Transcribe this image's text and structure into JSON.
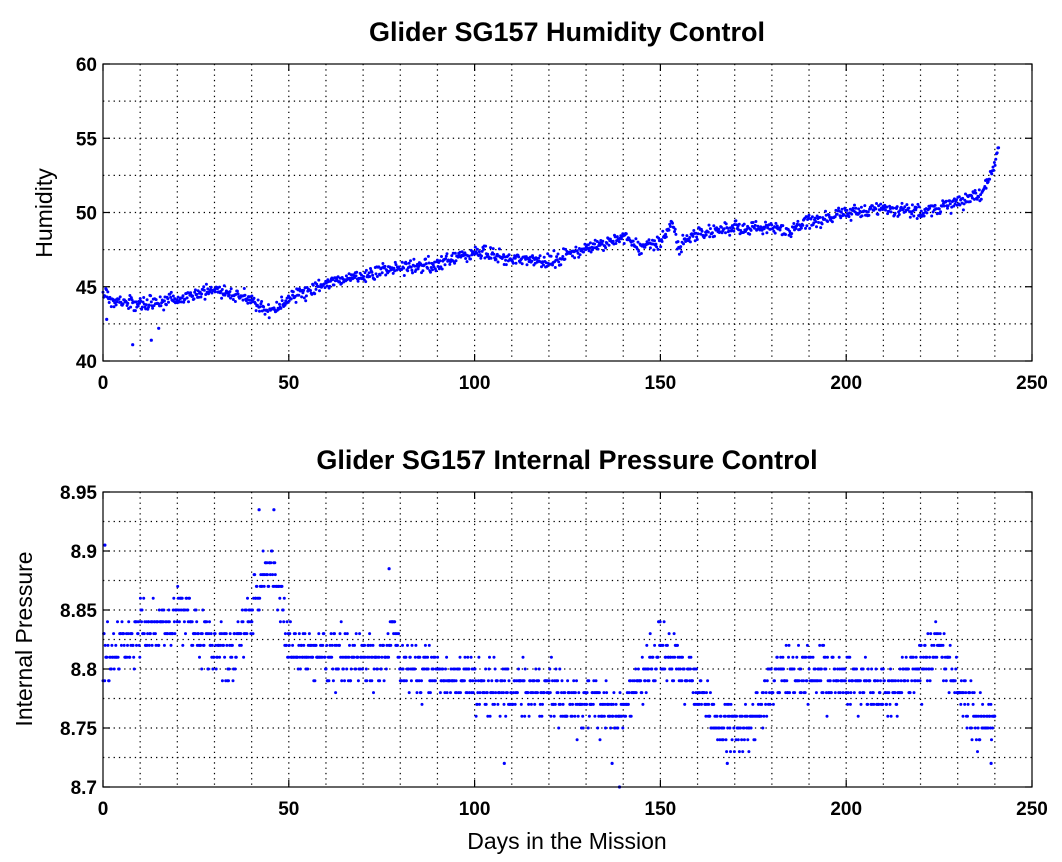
{
  "figure": {
    "background": "#ffffff",
    "marker_color": "#0000ff",
    "axis_color": "#000000"
  },
  "chart_data": [
    {
      "type": "scatter",
      "title": "Glider SG157 Humidity Control",
      "xlabel": "",
      "ylabel": "Humidity",
      "xlim": [
        0,
        250
      ],
      "ylim": [
        40,
        60
      ],
      "xticks": [
        0,
        50,
        100,
        150,
        200,
        250
      ],
      "yticks": [
        40,
        45,
        50,
        55,
        60
      ],
      "xgrid_step": 10,
      "ygrid_step": 2.5,
      "grid": true,
      "series": [
        {
          "name": "Humidity",
          "trend_x": [
            0,
            2,
            5,
            10,
            20,
            30,
            40,
            45,
            50,
            60,
            70,
            80,
            90,
            100,
            110,
            120,
            130,
            140,
            145,
            150,
            153,
            155,
            160,
            170,
            180,
            185,
            190,
            200,
            210,
            220,
            230,
            236,
            238,
            240,
            241
          ],
          "trend_y": [
            44.8,
            44.2,
            43.9,
            43.8,
            44.2,
            44.8,
            44.2,
            43.2,
            44.3,
            45.2,
            45.8,
            46.3,
            46.5,
            47.3,
            46.9,
            46.7,
            47.6,
            48.2,
            47.7,
            48.0,
            49.3,
            47.7,
            48.6,
            49.0,
            49.0,
            48.8,
            49.4,
            49.9,
            50.3,
            50.0,
            50.6,
            51.2,
            52.0,
            53.3,
            54.5
          ],
          "jitter": 0.45,
          "outliers_x": [
            1,
            8,
            13,
            15
          ],
          "outliers_y": [
            42.8,
            41.1,
            41.4,
            42.2
          ],
          "samples": 1300
        }
      ]
    },
    {
      "type": "scatter",
      "title": "Glider SG157 Internal Pressure Control",
      "xlabel": "Days in the Mission",
      "ylabel": "Internal Pressure",
      "xlim": [
        0,
        250
      ],
      "ylim": [
        8.7,
        8.95
      ],
      "xticks": [
        0,
        50,
        100,
        150,
        200,
        250
      ],
      "yticks": [
        8.7,
        8.75,
        8.8,
        8.85,
        8.9,
        8.95
      ],
      "xgrid_step": 10,
      "ygrid_step": 0.025,
      "grid": true,
      "series": [
        {
          "name": "Internal Pressure",
          "trend_x": [
            0,
            10,
            20,
            30,
            35,
            40,
            45,
            48,
            50,
            60,
            70,
            75,
            78,
            80,
            90,
            100,
            120,
            140,
            145,
            150,
            155,
            160,
            165,
            170,
            175,
            180,
            190,
            200,
            210,
            220,
            225,
            230,
            235,
            240
          ],
          "trend_y": [
            8.81,
            8.83,
            8.845,
            8.82,
            8.81,
            8.855,
            8.89,
            8.86,
            8.815,
            8.81,
            8.81,
            8.8,
            8.84,
            8.805,
            8.795,
            8.785,
            8.78,
            8.765,
            8.795,
            8.815,
            8.805,
            8.785,
            8.755,
            8.75,
            8.755,
            8.79,
            8.795,
            8.79,
            8.78,
            8.8,
            8.82,
            8.785,
            8.755,
            8.76
          ],
          "jitter": 0.022,
          "quantum": 0.01,
          "outliers_x": [
            0.5,
            42,
            46,
            77,
            108,
            137,
            139,
            168,
            239
          ],
          "outliers_y": [
            8.905,
            8.935,
            8.935,
            8.885,
            8.72,
            8.72,
            8.7,
            8.72,
            8.72
          ],
          "samples": 1600
        }
      ]
    }
  ]
}
